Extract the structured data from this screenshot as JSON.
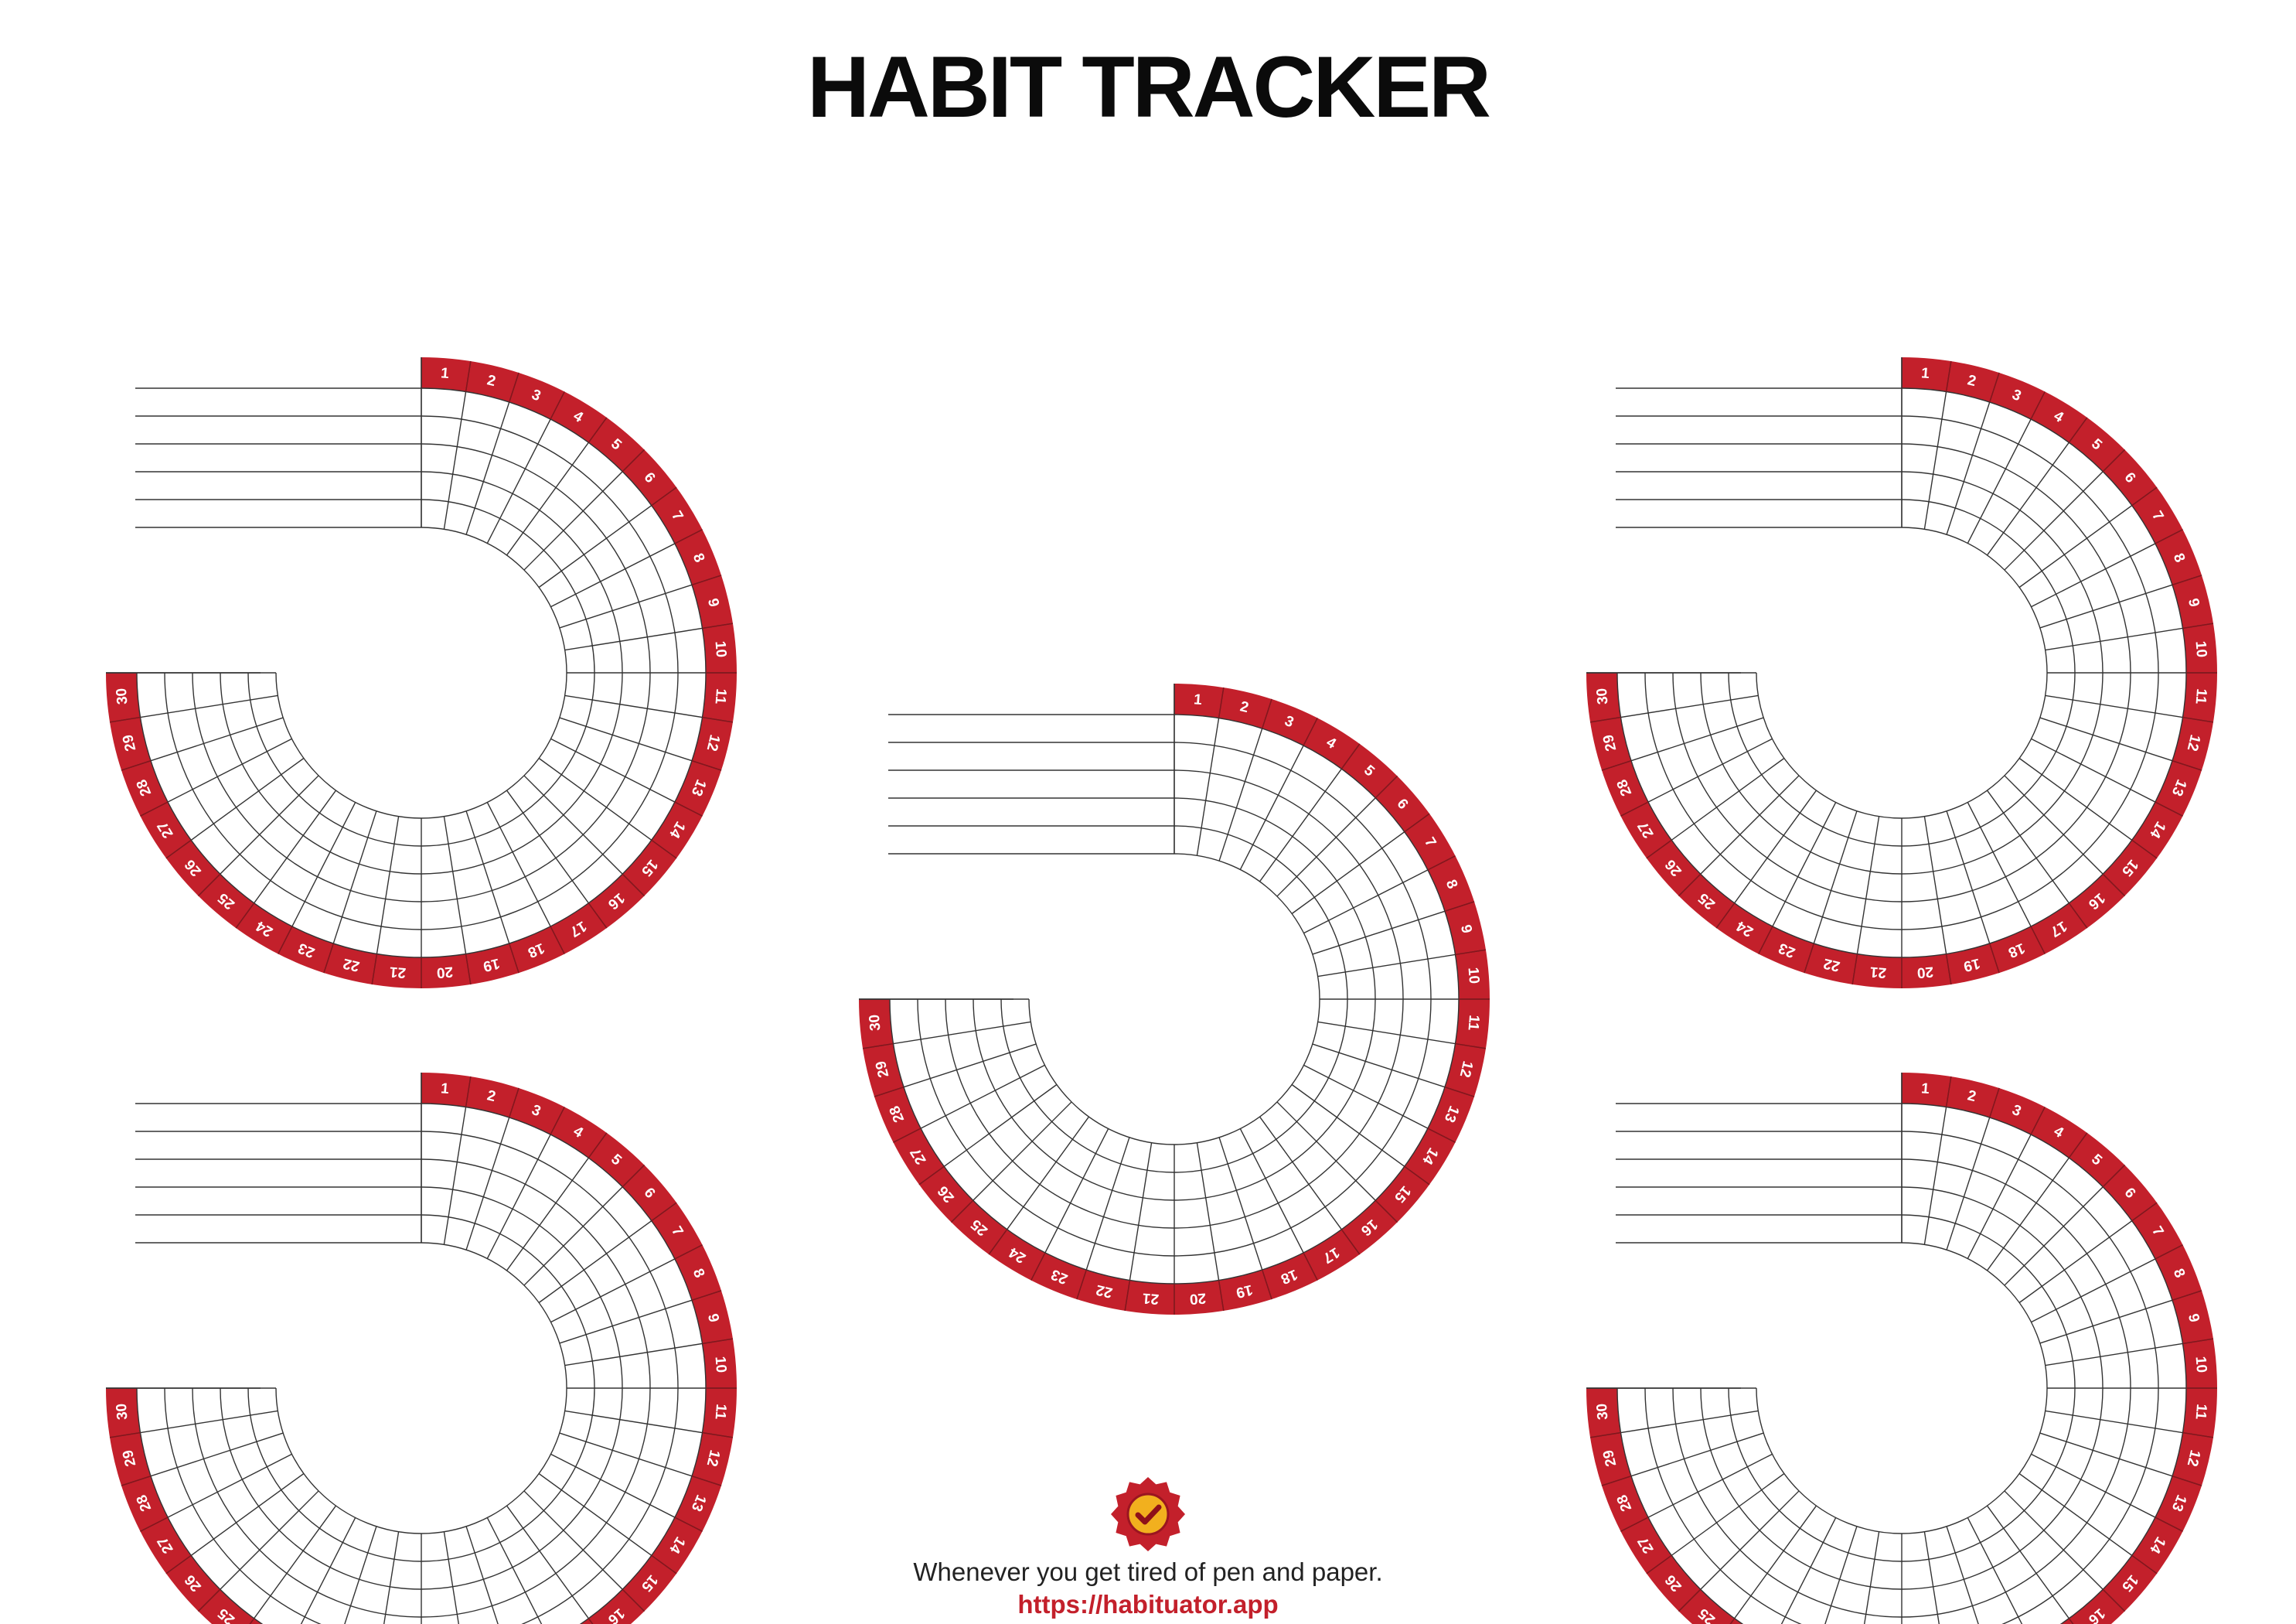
{
  "page": {
    "title": "HABIT TRACKER"
  },
  "trackers": {
    "count": 5,
    "days": [
      "1",
      "2",
      "3",
      "4",
      "5",
      "6",
      "7",
      "8",
      "9",
      "10",
      "11",
      "12",
      "13",
      "14",
      "15",
      "16",
      "17",
      "18",
      "19",
      "20",
      "21",
      "22",
      "23",
      "24",
      "25",
      "26",
      "27",
      "28",
      "29",
      "30"
    ],
    "habit_rows": 5
  },
  "footer": {
    "logo_icon": "red-badge-checkmark-icon",
    "tagline": "Whenever you get tired of pen and paper.",
    "url": "https://habituator.app"
  },
  "colors": {
    "accent": "#c3202b",
    "grid_line": "#333333",
    "text": "#0b0b0b",
    "badge_gold": "#f2b01e"
  }
}
